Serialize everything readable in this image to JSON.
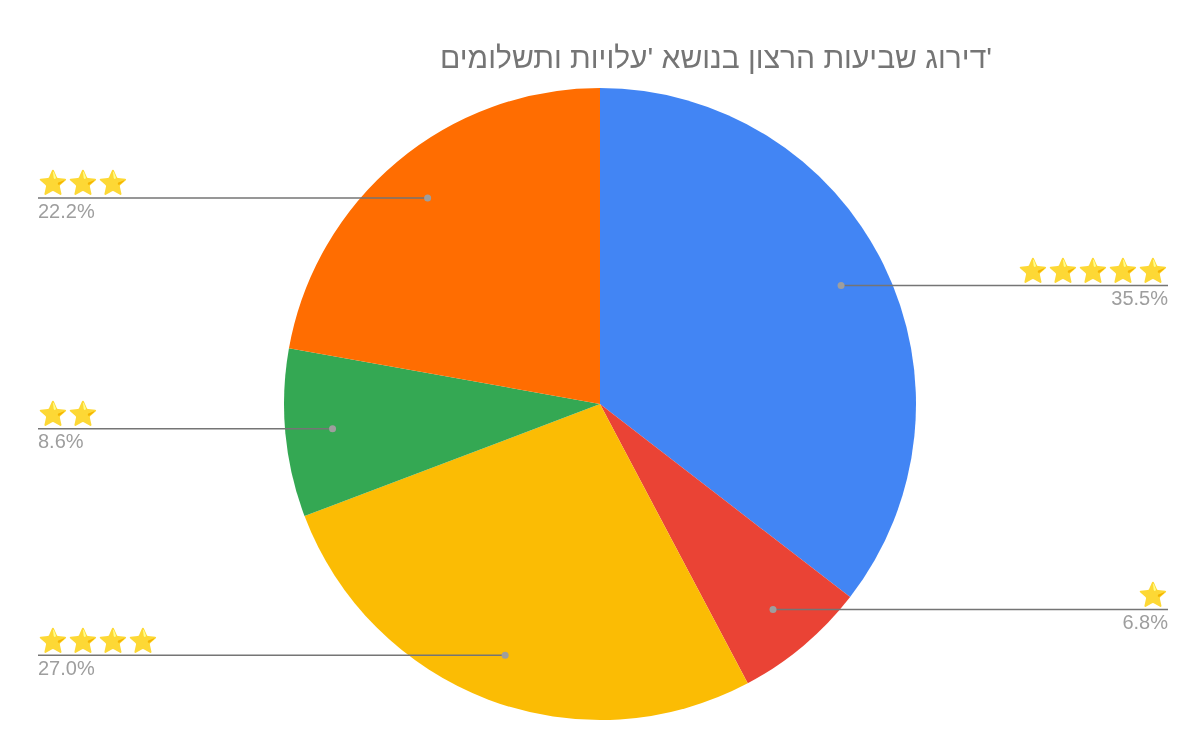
{
  "chart_data": {
    "type": "pie",
    "title": "דירוג שביעות הרצון בנושא 'עלויות ותשלומים'",
    "categories": [
      "⭐⭐⭐⭐⭐",
      "⭐",
      "⭐⭐⭐⭐",
      "⭐⭐",
      "⭐⭐⭐"
    ],
    "values": [
      35.5,
      6.8,
      27.0,
      8.6,
      22.2
    ],
    "value_labels": [
      "35.5%",
      "6.8%",
      "27.0%",
      "8.6%",
      "22.2%"
    ],
    "colors": [
      "#4285f4",
      "#ea4335",
      "#fbbc04",
      "#34a853",
      "#ff6d01"
    ],
    "legend": false
  }
}
